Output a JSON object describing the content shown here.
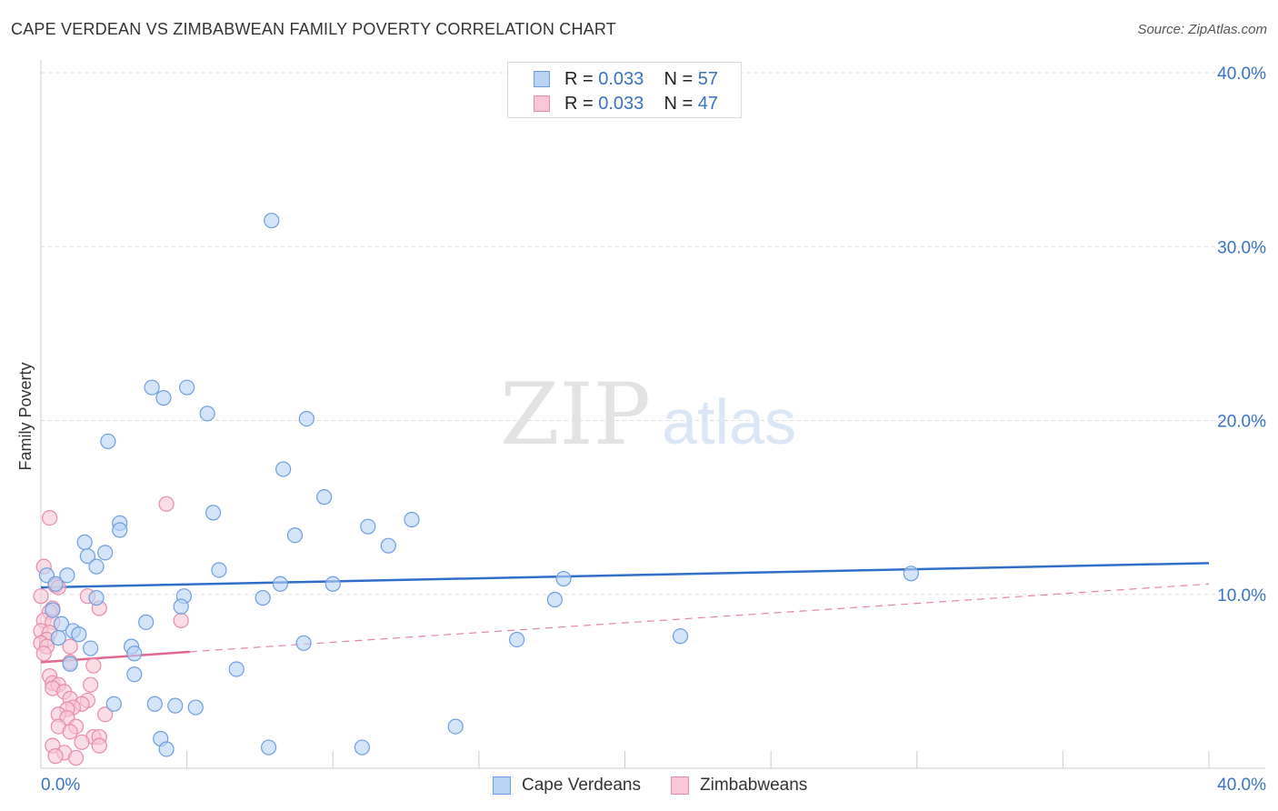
{
  "header": {
    "title": "CAPE VERDEAN VS ZIMBABWEAN FAMILY POVERTY CORRELATION CHART",
    "source": "Source: ZipAtlas.com"
  },
  "watermark": {
    "zip": "ZIP",
    "atlas": "atlas"
  },
  "legend_top": {
    "rows": [
      {
        "r_label": "R = ",
        "r_value": "0.033",
        "n_label": "N = ",
        "n_value": "57"
      },
      {
        "r_label": "R = ",
        "r_value": "0.033",
        "n_label": "N = ",
        "n_value": "47"
      }
    ]
  },
  "legend_bottom": {
    "items": [
      {
        "label": "Cape Verdeans"
      },
      {
        "label": "Zimbabweans"
      }
    ]
  },
  "colors": {
    "blue_fill": "#b9d3f5",
    "blue_stroke": "#6c9fe0",
    "blue_line": "#2f6fc9",
    "pink_fill": "#f9c6d6",
    "pink_stroke": "#e98aaa",
    "pink_line": "#e06790",
    "axis_text": "#3a72c4",
    "grid": "#dddddd"
  },
  "chart_data": {
    "type": "scatter",
    "title": "CAPE VERDEAN VS ZIMBABWEAN FAMILY POVERTY CORRELATION CHART",
    "xlabel": "",
    "ylabel": "Family Poverty",
    "xlim": [
      0,
      40
    ],
    "ylim": [
      0,
      40
    ],
    "x_tick_labels": [
      "0.0%",
      "40.0%"
    ],
    "y_ticks": [
      10,
      20,
      30,
      40
    ],
    "y_tick_labels": [
      "10.0%",
      "20.0%",
      "30.0%",
      "40.0%"
    ],
    "grid": true,
    "legend_placement": "top-center",
    "series": [
      {
        "name": "Cape Verdeans",
        "r": 0.033,
        "n": 57,
        "trend": {
          "x": [
            0,
            40
          ],
          "y": [
            10.4,
            11.8
          ],
          "style": "solid"
        },
        "points": [
          [
            7.9,
            31.5
          ],
          [
            3.8,
            21.9
          ],
          [
            5.0,
            21.9
          ],
          [
            4.2,
            21.3
          ],
          [
            5.7,
            20.4
          ],
          [
            9.1,
            20.1
          ],
          [
            2.3,
            18.8
          ],
          [
            8.3,
            17.2
          ],
          [
            9.7,
            15.6
          ],
          [
            5.9,
            14.7
          ],
          [
            12.7,
            14.3
          ],
          [
            11.2,
            13.9
          ],
          [
            2.7,
            14.1
          ],
          [
            2.7,
            13.7
          ],
          [
            8.7,
            13.4
          ],
          [
            1.5,
            13.0
          ],
          [
            11.9,
            12.8
          ],
          [
            2.2,
            12.4
          ],
          [
            1.6,
            12.2
          ],
          [
            1.9,
            11.6
          ],
          [
            6.1,
            11.4
          ],
          [
            29.8,
            11.2
          ],
          [
            0.9,
            11.1
          ],
          [
            0.2,
            11.1
          ],
          [
            17.9,
            10.9
          ],
          [
            8.2,
            10.6
          ],
          [
            10.0,
            10.6
          ],
          [
            0.5,
            10.6
          ],
          [
            1.9,
            9.8
          ],
          [
            4.9,
            9.9
          ],
          [
            7.6,
            9.8
          ],
          [
            17.6,
            9.7
          ],
          [
            0.4,
            9.1
          ],
          [
            4.8,
            9.3
          ],
          [
            3.6,
            8.4
          ],
          [
            0.7,
            8.3
          ],
          [
            1.1,
            7.9
          ],
          [
            0.6,
            7.5
          ],
          [
            1.3,
            7.7
          ],
          [
            21.9,
            7.6
          ],
          [
            9.0,
            7.2
          ],
          [
            16.3,
            7.4
          ],
          [
            3.1,
            7.0
          ],
          [
            1.7,
            6.9
          ],
          [
            3.2,
            6.6
          ],
          [
            1.0,
            6.0
          ],
          [
            6.7,
            5.7
          ],
          [
            3.2,
            5.4
          ],
          [
            2.5,
            3.7
          ],
          [
            3.9,
            3.7
          ],
          [
            4.6,
            3.6
          ],
          [
            5.3,
            3.5
          ],
          [
            14.2,
            2.4
          ],
          [
            4.1,
            1.7
          ],
          [
            4.3,
            1.1
          ],
          [
            7.8,
            1.2
          ],
          [
            11.0,
            1.2
          ]
        ]
      },
      {
        "name": "Zimbabweans",
        "r": 0.033,
        "n": 47,
        "trend": {
          "x": [
            0,
            5.1,
            40
          ],
          "y": [
            6.1,
            6.7,
            10.6
          ],
          "style": "solid-then-dashed"
        },
        "points": [
          [
            0.1,
            11.6
          ],
          [
            0.5,
            10.5
          ],
          [
            0.6,
            10.4
          ],
          [
            0.0,
            9.9
          ],
          [
            1.6,
            9.9
          ],
          [
            0.4,
            9.2
          ],
          [
            2.0,
            9.2
          ],
          [
            0.3,
            9.0
          ],
          [
            0.1,
            8.5
          ],
          [
            0.4,
            8.4
          ],
          [
            0.0,
            7.9
          ],
          [
            0.3,
            7.8
          ],
          [
            0.2,
            7.4
          ],
          [
            0.0,
            7.2
          ],
          [
            0.2,
            7.0
          ],
          [
            1.0,
            7.0
          ],
          [
            0.1,
            6.6
          ],
          [
            1.0,
            6.1
          ],
          [
            1.8,
            5.9
          ],
          [
            4.3,
            15.2
          ],
          [
            0.3,
            14.4
          ],
          [
            4.8,
            8.5
          ],
          [
            0.3,
            5.3
          ],
          [
            0.4,
            4.9
          ],
          [
            0.6,
            4.8
          ],
          [
            1.7,
            4.8
          ],
          [
            0.4,
            4.6
          ],
          [
            0.8,
            4.4
          ],
          [
            1.0,
            4.0
          ],
          [
            1.6,
            3.9
          ],
          [
            1.4,
            3.7
          ],
          [
            1.1,
            3.5
          ],
          [
            0.9,
            3.4
          ],
          [
            2.2,
            3.1
          ],
          [
            0.6,
            3.1
          ],
          [
            0.9,
            2.9
          ],
          [
            0.6,
            2.4
          ],
          [
            1.2,
            2.4
          ],
          [
            1.0,
            2.1
          ],
          [
            1.8,
            1.8
          ],
          [
            2.0,
            1.8
          ],
          [
            1.4,
            1.5
          ],
          [
            0.4,
            1.3
          ],
          [
            2.0,
            1.3
          ],
          [
            0.8,
            0.9
          ],
          [
            0.5,
            0.7
          ],
          [
            1.2,
            0.6
          ]
        ]
      }
    ]
  }
}
